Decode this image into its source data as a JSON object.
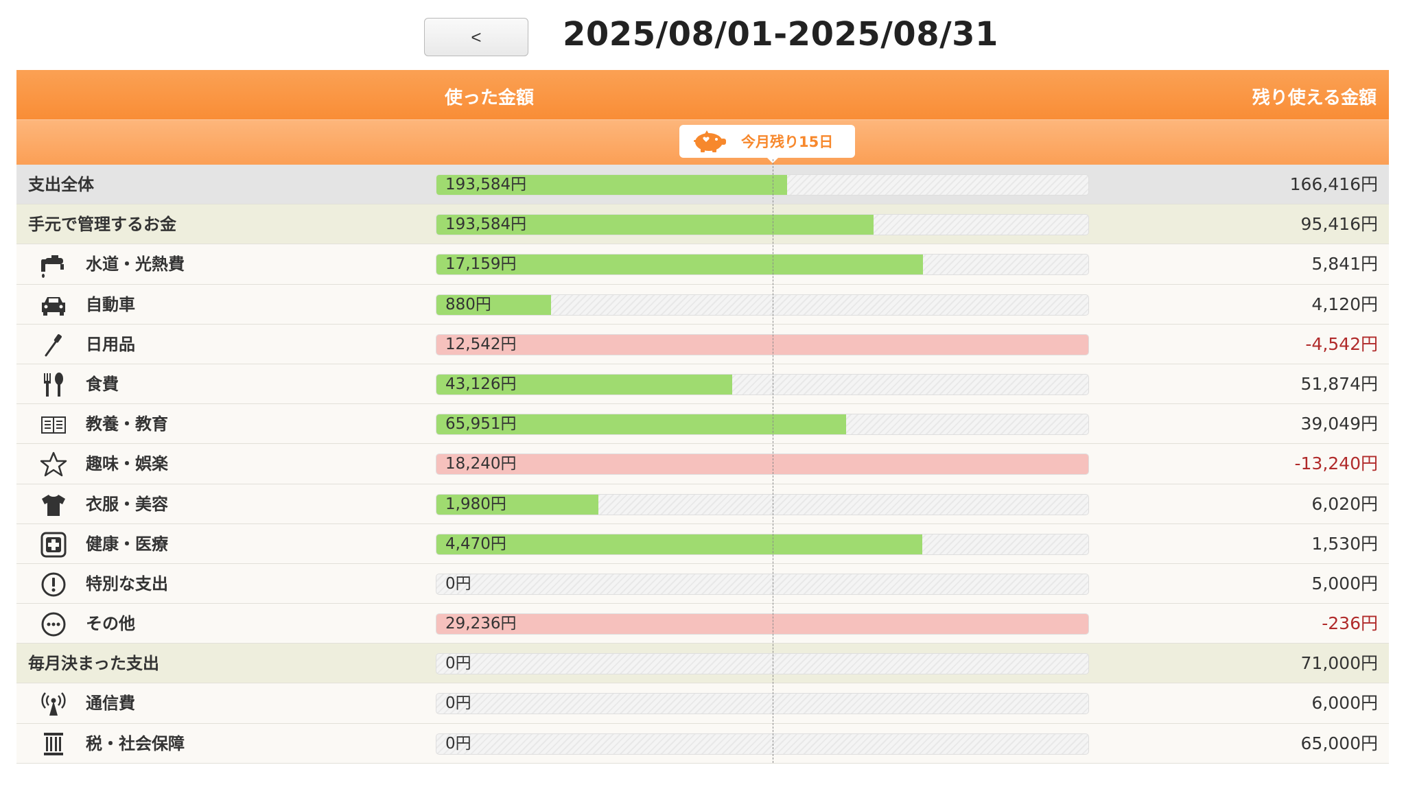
{
  "nav": {
    "back_label": "<",
    "period": "2025/08/01-2025/08/31"
  },
  "header": {
    "used_label": "使った金額",
    "remaining_label": "残り使える金額",
    "badge_text": "今月残り15日",
    "badge_icon": "piggy-bank-icon"
  },
  "colors": {
    "header_orange": "#f98d36",
    "under_budget": "#9fdb70",
    "over_budget": "#f6c1bd",
    "negative_text": "#b02a2a"
  },
  "rows": [
    {
      "type": "total",
      "label": "支出全体",
      "used": "193,584円",
      "remaining": "166,416円",
      "progress": 0.538,
      "over": false
    },
    {
      "type": "group",
      "label": "手元で管理するお金",
      "used": "193,584円",
      "remaining": "95,416円",
      "progress": 0.67,
      "over": false
    },
    {
      "type": "cat",
      "icon": "faucet-icon",
      "label": "水道・光熱費",
      "used": "17,159円",
      "remaining": "5,841円",
      "progress": 0.746,
      "over": false
    },
    {
      "type": "cat",
      "icon": "car-icon",
      "label": "自動車",
      "used": "880円",
      "remaining": "4,120円",
      "progress": 0.176,
      "over": false
    },
    {
      "type": "cat",
      "icon": "toothbrush-icon",
      "label": "日用品",
      "used": "12,542円",
      "remaining": "-4,542円",
      "progress": 1,
      "over": true
    },
    {
      "type": "cat",
      "icon": "fork-spoon-icon",
      "label": "食費",
      "used": "43,126円",
      "remaining": "51,874円",
      "progress": 0.454,
      "over": false
    },
    {
      "type": "cat",
      "icon": "book-icon",
      "label": "教養・教育",
      "used": "65,951円",
      "remaining": "39,049円",
      "progress": 0.628,
      "over": false
    },
    {
      "type": "cat",
      "icon": "star-icon",
      "label": "趣味・娯楽",
      "used": "18,240円",
      "remaining": "-13,240円",
      "progress": 1,
      "over": true
    },
    {
      "type": "cat",
      "icon": "tshirt-icon",
      "label": "衣服・美容",
      "used": "1,980円",
      "remaining": "6,020円",
      "progress": 0.248,
      "over": false
    },
    {
      "type": "cat",
      "icon": "medical-cross-icon",
      "label": "健康・医療",
      "used": "4,470円",
      "remaining": "1,530円",
      "progress": 0.745,
      "over": false
    },
    {
      "type": "cat",
      "icon": "exclamation-icon",
      "label": "特別な支出",
      "used": "0円",
      "remaining": "5,000円",
      "progress": 0,
      "over": false
    },
    {
      "type": "cat",
      "icon": "more-icon",
      "label": "その他",
      "used": "29,236円",
      "remaining": "-236円",
      "progress": 1,
      "over": true
    },
    {
      "type": "group",
      "label": "毎月決まった支出",
      "used": "0円",
      "remaining": "71,000円",
      "progress": 0,
      "over": false
    },
    {
      "type": "cat",
      "icon": "antenna-icon",
      "label": "通信費",
      "used": "0円",
      "remaining": "6,000円",
      "progress": 0,
      "over": false
    },
    {
      "type": "cat",
      "icon": "pillar-icon",
      "label": "税・社会保障",
      "used": "0円",
      "remaining": "65,000円",
      "progress": 0,
      "over": false
    }
  ]
}
